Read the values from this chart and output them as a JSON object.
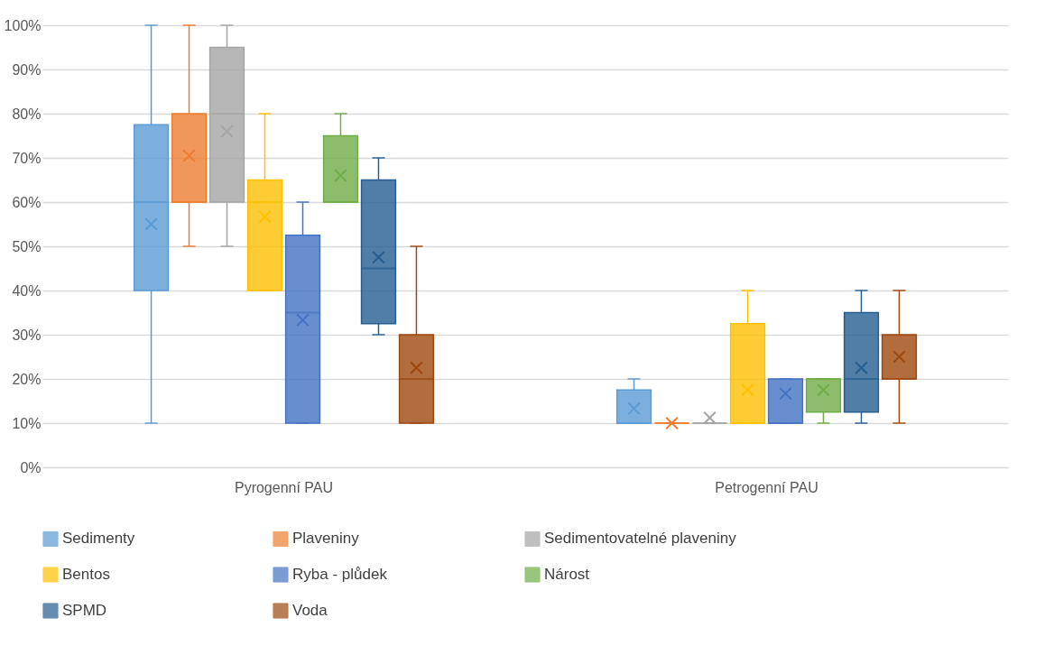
{
  "chart_data": {
    "type": "box",
    "categories": [
      "Pyrogenní PAU",
      "Petrogenní PAU"
    ],
    "ylim": [
      0,
      100
    ],
    "yticks": [
      {
        "value": 0,
        "label": "0%"
      },
      {
        "value": 10,
        "label": "10%"
      },
      {
        "value": 20,
        "label": "20%"
      },
      {
        "value": 30,
        "label": "30%"
      },
      {
        "value": 40,
        "label": "40%"
      },
      {
        "value": 50,
        "label": "50%"
      },
      {
        "value": 60,
        "label": "60%"
      },
      {
        "value": 70,
        "label": "70%"
      },
      {
        "value": 80,
        "label": "80%"
      },
      {
        "value": 90,
        "label": "90%"
      },
      {
        "value": 100,
        "label": "100%"
      }
    ],
    "grid": "y",
    "legend": "bottom",
    "marker": "cross",
    "series": [
      {
        "name": "Sedimenty",
        "color": "#5b9bd5",
        "boxes": [
          {
            "low": 10,
            "q1": 40,
            "median": 60,
            "q3": 77.5,
            "high": 100,
            "mean": 55
          },
          {
            "low": 10,
            "q1": 10,
            "median": 10,
            "q3": 17.5,
            "high": 20,
            "mean": 13.3
          }
        ]
      },
      {
        "name": "Plaveniny",
        "color": "#ed7d31",
        "boxes": [
          {
            "low": 50,
            "q1": 60,
            "median": 60,
            "q3": 80,
            "high": 100,
            "mean": 70.5
          },
          {
            "low": 10,
            "q1": 10,
            "median": 10,
            "q3": 10,
            "high": 10,
            "mean": 10
          }
        ]
      },
      {
        "name": "Sedimentovatelné plaveniny",
        "color": "#a5a5a5",
        "boxes": [
          {
            "low": 50,
            "q1": 60,
            "median": 80,
            "q3": 95,
            "high": 100,
            "mean": 76
          },
          {
            "low": 10,
            "q1": 10,
            "median": 10,
            "q3": 10,
            "high": 10,
            "mean": 11.2
          }
        ]
      },
      {
        "name": "Bentos",
        "color": "#ffc000",
        "boxes": [
          {
            "low": 40,
            "q1": 40,
            "median": 60,
            "q3": 65,
            "high": 80,
            "mean": 56.7
          },
          {
            "low": 10,
            "q1": 10,
            "median": 10,
            "q3": 32.5,
            "high": 40,
            "mean": 17.5
          }
        ]
      },
      {
        "name": "Ryba - plůdek",
        "color": "#4472c4",
        "boxes": [
          {
            "low": 10,
            "q1": 10,
            "median": 35,
            "q3": 52.5,
            "high": 60,
            "mean": 33.3
          },
          {
            "low": 10,
            "q1": 10,
            "median": 10,
            "q3": 20,
            "high": 20,
            "mean": 16.7
          }
        ]
      },
      {
        "name": "Nárost",
        "color": "#70ad47",
        "boxes": [
          {
            "low": 60,
            "q1": 60,
            "median": 60,
            "q3": 75,
            "high": 80,
            "mean": 66
          },
          {
            "low": 10,
            "q1": 12.5,
            "median": 20,
            "q3": 20,
            "high": 20,
            "mean": 17.5
          }
        ]
      },
      {
        "name": "SPMD",
        "color": "#255e91",
        "boxes": [
          {
            "low": 30,
            "q1": 32.5,
            "median": 45,
            "q3": 65,
            "high": 70,
            "mean": 47.5
          },
          {
            "low": 10,
            "q1": 12.5,
            "median": 20,
            "q3": 35,
            "high": 40,
            "mean": 22.5
          }
        ]
      },
      {
        "name": "Voda",
        "color": "#9e480e",
        "boxes": [
          {
            "low": 10,
            "q1": 10,
            "median": 20,
            "q3": 30,
            "high": 50,
            "mean": 22.5
          },
          {
            "low": 10,
            "q1": 20,
            "median": 20,
            "q3": 30,
            "high": 40,
            "mean": 25
          }
        ]
      }
    ]
  }
}
